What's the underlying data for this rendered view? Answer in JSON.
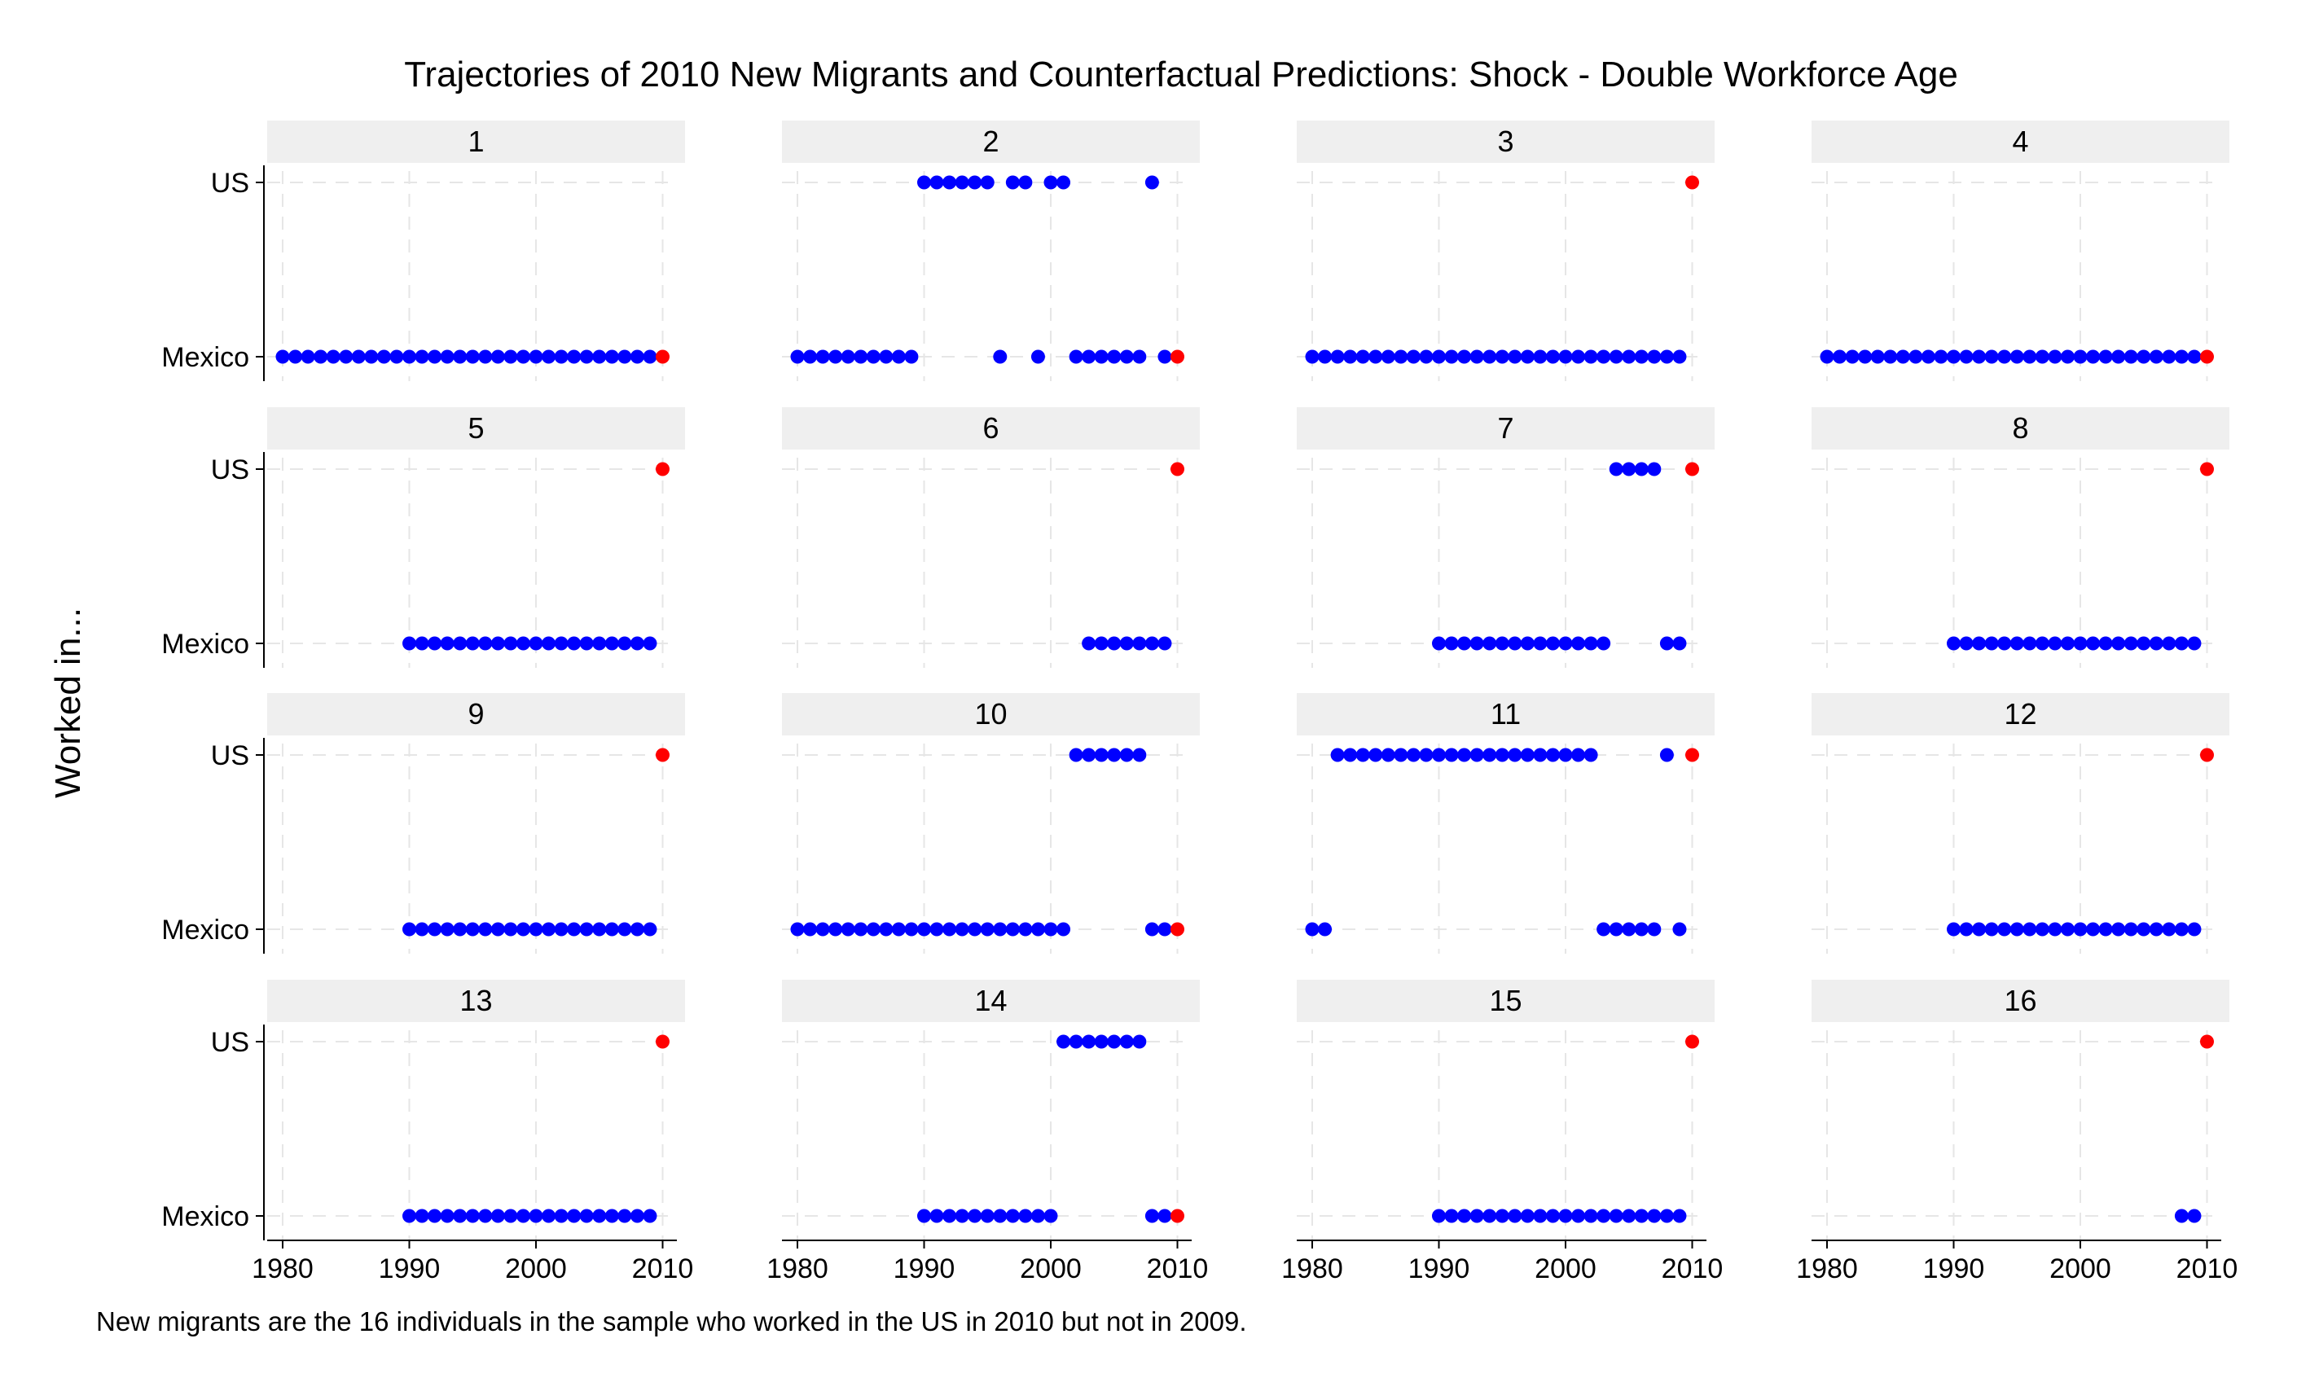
{
  "chart_data": {
    "type": "scatter",
    "title": "Trajectories of 2010 New Migrants and Counterfactual Predictions: Shock - Double Workforce Age",
    "ylabel": "Worked in...",
    "xlabel": "",
    "note": "New migrants are the 16 individuals in the sample who worked in the US in 2010 but not in 2009.",
    "x_ticks": [
      1980,
      1990,
      2000,
      2010
    ],
    "y_categories": [
      "Mexico",
      "US"
    ],
    "xlim": [
      1979,
      2011
    ],
    "grid": true,
    "colors": {
      "observed": "#0000ff",
      "predicted": "#ff0000",
      "strip": "#efefef",
      "grid": "#e6e6e6"
    },
    "panels": [
      {
        "label": "1",
        "mexico": [
          1980,
          1981,
          1982,
          1983,
          1984,
          1985,
          1986,
          1987,
          1988,
          1989,
          1990,
          1991,
          1992,
          1993,
          1994,
          1995,
          1996,
          1997,
          1998,
          1999,
          2000,
          2001,
          2002,
          2003,
          2004,
          2005,
          2006,
          2007,
          2008,
          2009
        ],
        "us": [],
        "predicted": {
          "year": 2010,
          "location": "Mexico"
        }
      },
      {
        "label": "2",
        "mexico": [
          1980,
          1981,
          1982,
          1983,
          1984,
          1985,
          1986,
          1987,
          1988,
          1989,
          1996,
          1999,
          2002,
          2003,
          2004,
          2005,
          2006,
          2007,
          2009
        ],
        "us": [
          1990,
          1991,
          1992,
          1993,
          1994,
          1995,
          1997,
          1998,
          2000,
          2001,
          2008
        ],
        "predicted": {
          "year": 2010,
          "location": "Mexico"
        }
      },
      {
        "label": "3",
        "mexico": [
          1980,
          1981,
          1982,
          1983,
          1984,
          1985,
          1986,
          1987,
          1988,
          1989,
          1990,
          1991,
          1992,
          1993,
          1994,
          1995,
          1996,
          1997,
          1998,
          1999,
          2000,
          2001,
          2002,
          2003,
          2004,
          2005,
          2006,
          2007,
          2008,
          2009
        ],
        "us": [],
        "predicted": {
          "year": 2010,
          "location": "US"
        }
      },
      {
        "label": "4",
        "mexico": [
          1980,
          1981,
          1982,
          1983,
          1984,
          1985,
          1986,
          1987,
          1988,
          1989,
          1990,
          1991,
          1992,
          1993,
          1994,
          1995,
          1996,
          1997,
          1998,
          1999,
          2000,
          2001,
          2002,
          2003,
          2004,
          2005,
          2006,
          2007,
          2008,
          2009
        ],
        "us": [],
        "predicted": {
          "year": 2010,
          "location": "Mexico"
        }
      },
      {
        "label": "5",
        "mexico": [
          1990,
          1991,
          1992,
          1993,
          1994,
          1995,
          1996,
          1997,
          1998,
          1999,
          2000,
          2001,
          2002,
          2003,
          2004,
          2005,
          2006,
          2007,
          2008,
          2009
        ],
        "us": [],
        "predicted": {
          "year": 2010,
          "location": "US"
        }
      },
      {
        "label": "6",
        "mexico": [
          2003,
          2004,
          2005,
          2006,
          2007,
          2008,
          2009
        ],
        "us": [],
        "predicted": {
          "year": 2010,
          "location": "US"
        }
      },
      {
        "label": "7",
        "mexico": [
          1990,
          1991,
          1992,
          1993,
          1994,
          1995,
          1996,
          1997,
          1998,
          1999,
          2000,
          2001,
          2002,
          2003,
          2008,
          2009
        ],
        "us": [
          2004,
          2005,
          2006,
          2007
        ],
        "predicted": {
          "year": 2010,
          "location": "US"
        }
      },
      {
        "label": "8",
        "mexico": [
          1990,
          1991,
          1992,
          1993,
          1994,
          1995,
          1996,
          1997,
          1998,
          1999,
          2000,
          2001,
          2002,
          2003,
          2004,
          2005,
          2006,
          2007,
          2008,
          2009
        ],
        "us": [],
        "predicted": {
          "year": 2010,
          "location": "US"
        }
      },
      {
        "label": "9",
        "mexico": [
          1990,
          1991,
          1992,
          1993,
          1994,
          1995,
          1996,
          1997,
          1998,
          1999,
          2000,
          2001,
          2002,
          2003,
          2004,
          2005,
          2006,
          2007,
          2008,
          2009
        ],
        "us": [],
        "predicted": {
          "year": 2010,
          "location": "US"
        }
      },
      {
        "label": "10",
        "mexico": [
          1980,
          1981,
          1982,
          1983,
          1984,
          1985,
          1986,
          1987,
          1988,
          1989,
          1990,
          1991,
          1992,
          1993,
          1994,
          1995,
          1996,
          1997,
          1998,
          1999,
          2000,
          2001,
          2008,
          2009
        ],
        "us": [
          2002,
          2003,
          2004,
          2005,
          2006,
          2007
        ],
        "predicted": {
          "year": 2010,
          "location": "Mexico"
        }
      },
      {
        "label": "11",
        "mexico": [
          1980,
          1981,
          2003,
          2004,
          2005,
          2006,
          2007,
          2009
        ],
        "us": [
          1982,
          1983,
          1984,
          1985,
          1986,
          1987,
          1988,
          1989,
          1990,
          1991,
          1992,
          1993,
          1994,
          1995,
          1996,
          1997,
          1998,
          1999,
          2000,
          2001,
          2002,
          2008
        ],
        "predicted": {
          "year": 2010,
          "location": "US"
        }
      },
      {
        "label": "12",
        "mexico": [
          1990,
          1991,
          1992,
          1993,
          1994,
          1995,
          1996,
          1997,
          1998,
          1999,
          2000,
          2001,
          2002,
          2003,
          2004,
          2005,
          2006,
          2007,
          2008,
          2009
        ],
        "us": [],
        "predicted": {
          "year": 2010,
          "location": "US"
        }
      },
      {
        "label": "13",
        "mexico": [
          1990,
          1991,
          1992,
          1993,
          1994,
          1995,
          1996,
          1997,
          1998,
          1999,
          2000,
          2001,
          2002,
          2003,
          2004,
          2005,
          2006,
          2007,
          2008,
          2009
        ],
        "us": [],
        "predicted": {
          "year": 2010,
          "location": "US"
        }
      },
      {
        "label": "14",
        "mexico": [
          1990,
          1991,
          1992,
          1993,
          1994,
          1995,
          1996,
          1997,
          1998,
          1999,
          2000,
          2008,
          2009
        ],
        "us": [
          2001,
          2002,
          2003,
          2004,
          2005,
          2006,
          2007
        ],
        "predicted": {
          "year": 2010,
          "location": "Mexico"
        }
      },
      {
        "label": "15",
        "mexico": [
          1990,
          1991,
          1992,
          1993,
          1994,
          1995,
          1996,
          1997,
          1998,
          1999,
          2000,
          2001,
          2002,
          2003,
          2004,
          2005,
          2006,
          2007,
          2008,
          2009
        ],
        "us": [],
        "predicted": {
          "year": 2010,
          "location": "US"
        }
      },
      {
        "label": "16",
        "mexico": [
          2008,
          2009
        ],
        "us": [],
        "predicted": {
          "year": 2010,
          "location": "US"
        }
      }
    ]
  }
}
